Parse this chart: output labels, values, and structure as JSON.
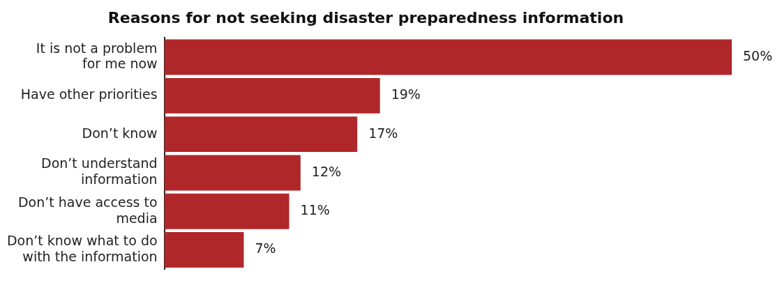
{
  "chart_data": {
    "type": "bar",
    "orientation": "horizontal",
    "title": "Reasons for not seeking disaster preparedness information",
    "categories": [
      "It is not a problem for me now",
      "Have other priorities",
      "Don’t know",
      "Don’t understand information",
      "Don’t have access to media",
      "Don’t know what to do with the information"
    ],
    "values": [
      50,
      19,
      17,
      12,
      11,
      7
    ],
    "value_labels": [
      "50%",
      "19%",
      "17%",
      "12%",
      "11%",
      "7%"
    ],
    "color": "#b0272a"
  }
}
